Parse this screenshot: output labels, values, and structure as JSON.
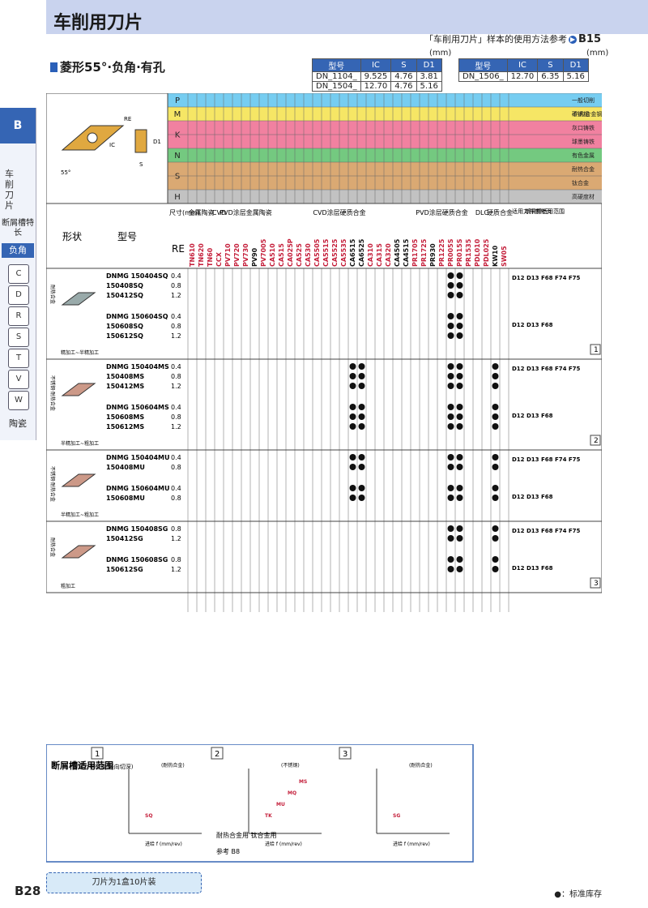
{
  "header": {
    "title": "车削用刀片",
    "ref_text": "「车削用刀片」样本的使用方法参考",
    "ref_page": "B15",
    "subtitle": "菱形55°·负角·有孔"
  },
  "sidebar": {
    "tab": "B",
    "label": "车削刀片",
    "groove": "断屑槽特长",
    "active": "负角",
    "shapes": [
      "C",
      "D",
      "R",
      "S",
      "T",
      "V",
      "W"
    ],
    "ceramic": "陶瓷"
  },
  "spec_tables": {
    "unit": "(mm)",
    "headers": [
      "型号",
      "IC",
      "S",
      "D1"
    ],
    "left_rows": [
      [
        "DN_1104_",
        "9.525",
        "4.76",
        "3.81"
      ],
      [
        "DN_1504_",
        "12.70",
        "4.76",
        "5.16"
      ]
    ],
    "right_rows": [
      [
        "DN_1506_",
        "12.70",
        "6.35",
        "5.16"
      ]
    ]
  },
  "materials": [
    {
      "code": "P",
      "name": "一般切削",
      "name2": "碳钢/合金钢",
      "color": "#5ec4ee"
    },
    {
      "code": "M",
      "name": "不锈钢",
      "color": "#f5e24a"
    },
    {
      "code": "K",
      "name": "灰口铸铁",
      "name2": "球墨铸铁",
      "color": "#ee6b8f"
    },
    {
      "code": "N",
      "name": "有色金属",
      "color": "#5cbf6a"
    },
    {
      "code": "S",
      "name": "耐热合金",
      "name2": "钛合金",
      "color": "#d49a5a"
    },
    {
      "code": "H",
      "name": "高硬度材",
      "color": "#b7b7b7"
    }
  ],
  "columns": {
    "shape": "形状",
    "model": "型号",
    "size": "尺寸(mm)",
    "re": "RE",
    "groups": [
      "金属陶瓷",
      "CVD",
      "PVD涂层金属陶瓷",
      "CVD涂层硬质合金",
      "PVD涂层硬质合金",
      "DLC",
      "硬质合金",
      "适用刀杆参考页",
      "断屑槽适用范围"
    ],
    "grades": [
      "TN610",
      "TN620",
      "TN60",
      "CCX",
      "PV710",
      "PV720",
      "PV730",
      "PV90",
      "PV7005",
      "CA510",
      "CA515",
      "CA025P",
      "CA525",
      "CA530",
      "CA5505",
      "CA5515",
      "CA5525",
      "CA5535",
      "CA6515",
      "CA6525",
      "CA310",
      "CA315",
      "CA320",
      "CA4505",
      "CA4515",
      "PR1705",
      "PR1725",
      "PR930",
      "PR1225",
      "PR005S",
      "PR015S",
      "PR1535",
      "PDL010",
      "PDL025",
      "KW10",
      "SW05"
    ]
  },
  "rows": [
    {
      "group": "耐热合金",
      "note": "精加工~半精加工",
      "items": [
        {
          "model": "DNMG 150404SQ",
          "re": "0.4"
        },
        {
          "model": "150408SQ",
          "re": "0.8"
        },
        {
          "model": "150412SQ",
          "re": "1.2"
        },
        {
          "model": "DNMG 150604SQ",
          "re": "0.4"
        },
        {
          "model": "150608SQ",
          "re": "0.8"
        },
        {
          "model": "150612SQ",
          "re": "1.2"
        }
      ],
      "refs": [
        "D12 D13 F68 F74 F75",
        "D12 D13 F68"
      ],
      "range": "1"
    },
    {
      "group": "不锈钢·耐热合金",
      "note": "半精加工~粗加工",
      "items": [
        {
          "model": "DNMG 150404MS",
          "re": "0.4"
        },
        {
          "model": "150408MS",
          "re": "0.8"
        },
        {
          "model": "150412MS",
          "re": "1.2"
        },
        {
          "model": "DNMG 150604MS",
          "re": "0.4"
        },
        {
          "model": "150608MS",
          "re": "0.8"
        },
        {
          "model": "150612MS",
          "re": "1.2"
        }
      ],
      "refs": [
        "D12 D13 F68 F74 F75",
        "D12 D13 F68"
      ],
      "range": "2"
    },
    {
      "group": "不锈钢·耐热合金",
      "note": "半精加工~粗加工",
      "items": [
        {
          "model": "DNMG 150404MU",
          "re": "0.4"
        },
        {
          "model": "150408MU",
          "re": "0.8"
        },
        {
          "model": "DNMG 150604MU",
          "re": "0.4"
        },
        {
          "model": "150608MU",
          "re": "0.8"
        }
      ],
      "refs": [
        "D12 D13 F68 F74 F75",
        "D12 D13 F68"
      ],
      "range": ""
    },
    {
      "group": "耐热合金",
      "note": "粗加工",
      "items": [
        {
          "model": "DNMG 150408SG",
          "re": "0.8"
        },
        {
          "model": "150412SG",
          "re": "1.2"
        },
        {
          "model": "DNMG 150608SG",
          "re": "0.8"
        },
        {
          "model": "150612SG",
          "re": "1.2"
        }
      ],
      "refs": [
        "D12 D13 F68 F74 F75",
        "D12 D13 F68"
      ],
      "range": "3"
    }
  ],
  "bottom": {
    "title": "断屑槽适用范围",
    "axis_note": "切深为半径值(径向切深)",
    "panel1_title": "(耐热合金)",
    "panel2_title": "(不锈钢)",
    "panel3_title": "(耐热合金)",
    "xlabel": "进给 f (mm/rev)",
    "ylabel": "切深 ap (mm)",
    "p2_note": "耐热合金用 钛合金用",
    "p2_ref": "参考",
    "p2_ref_page": "B8",
    "labels1": [
      "SQ"
    ],
    "labels2": [
      "TK",
      "MU",
      "MQ",
      "MS"
    ],
    "labels3": [
      "SG"
    ]
  },
  "footer": {
    "page": "B28",
    "package": "刀片为1盒10片装",
    "legend": "●：标准库存"
  }
}
